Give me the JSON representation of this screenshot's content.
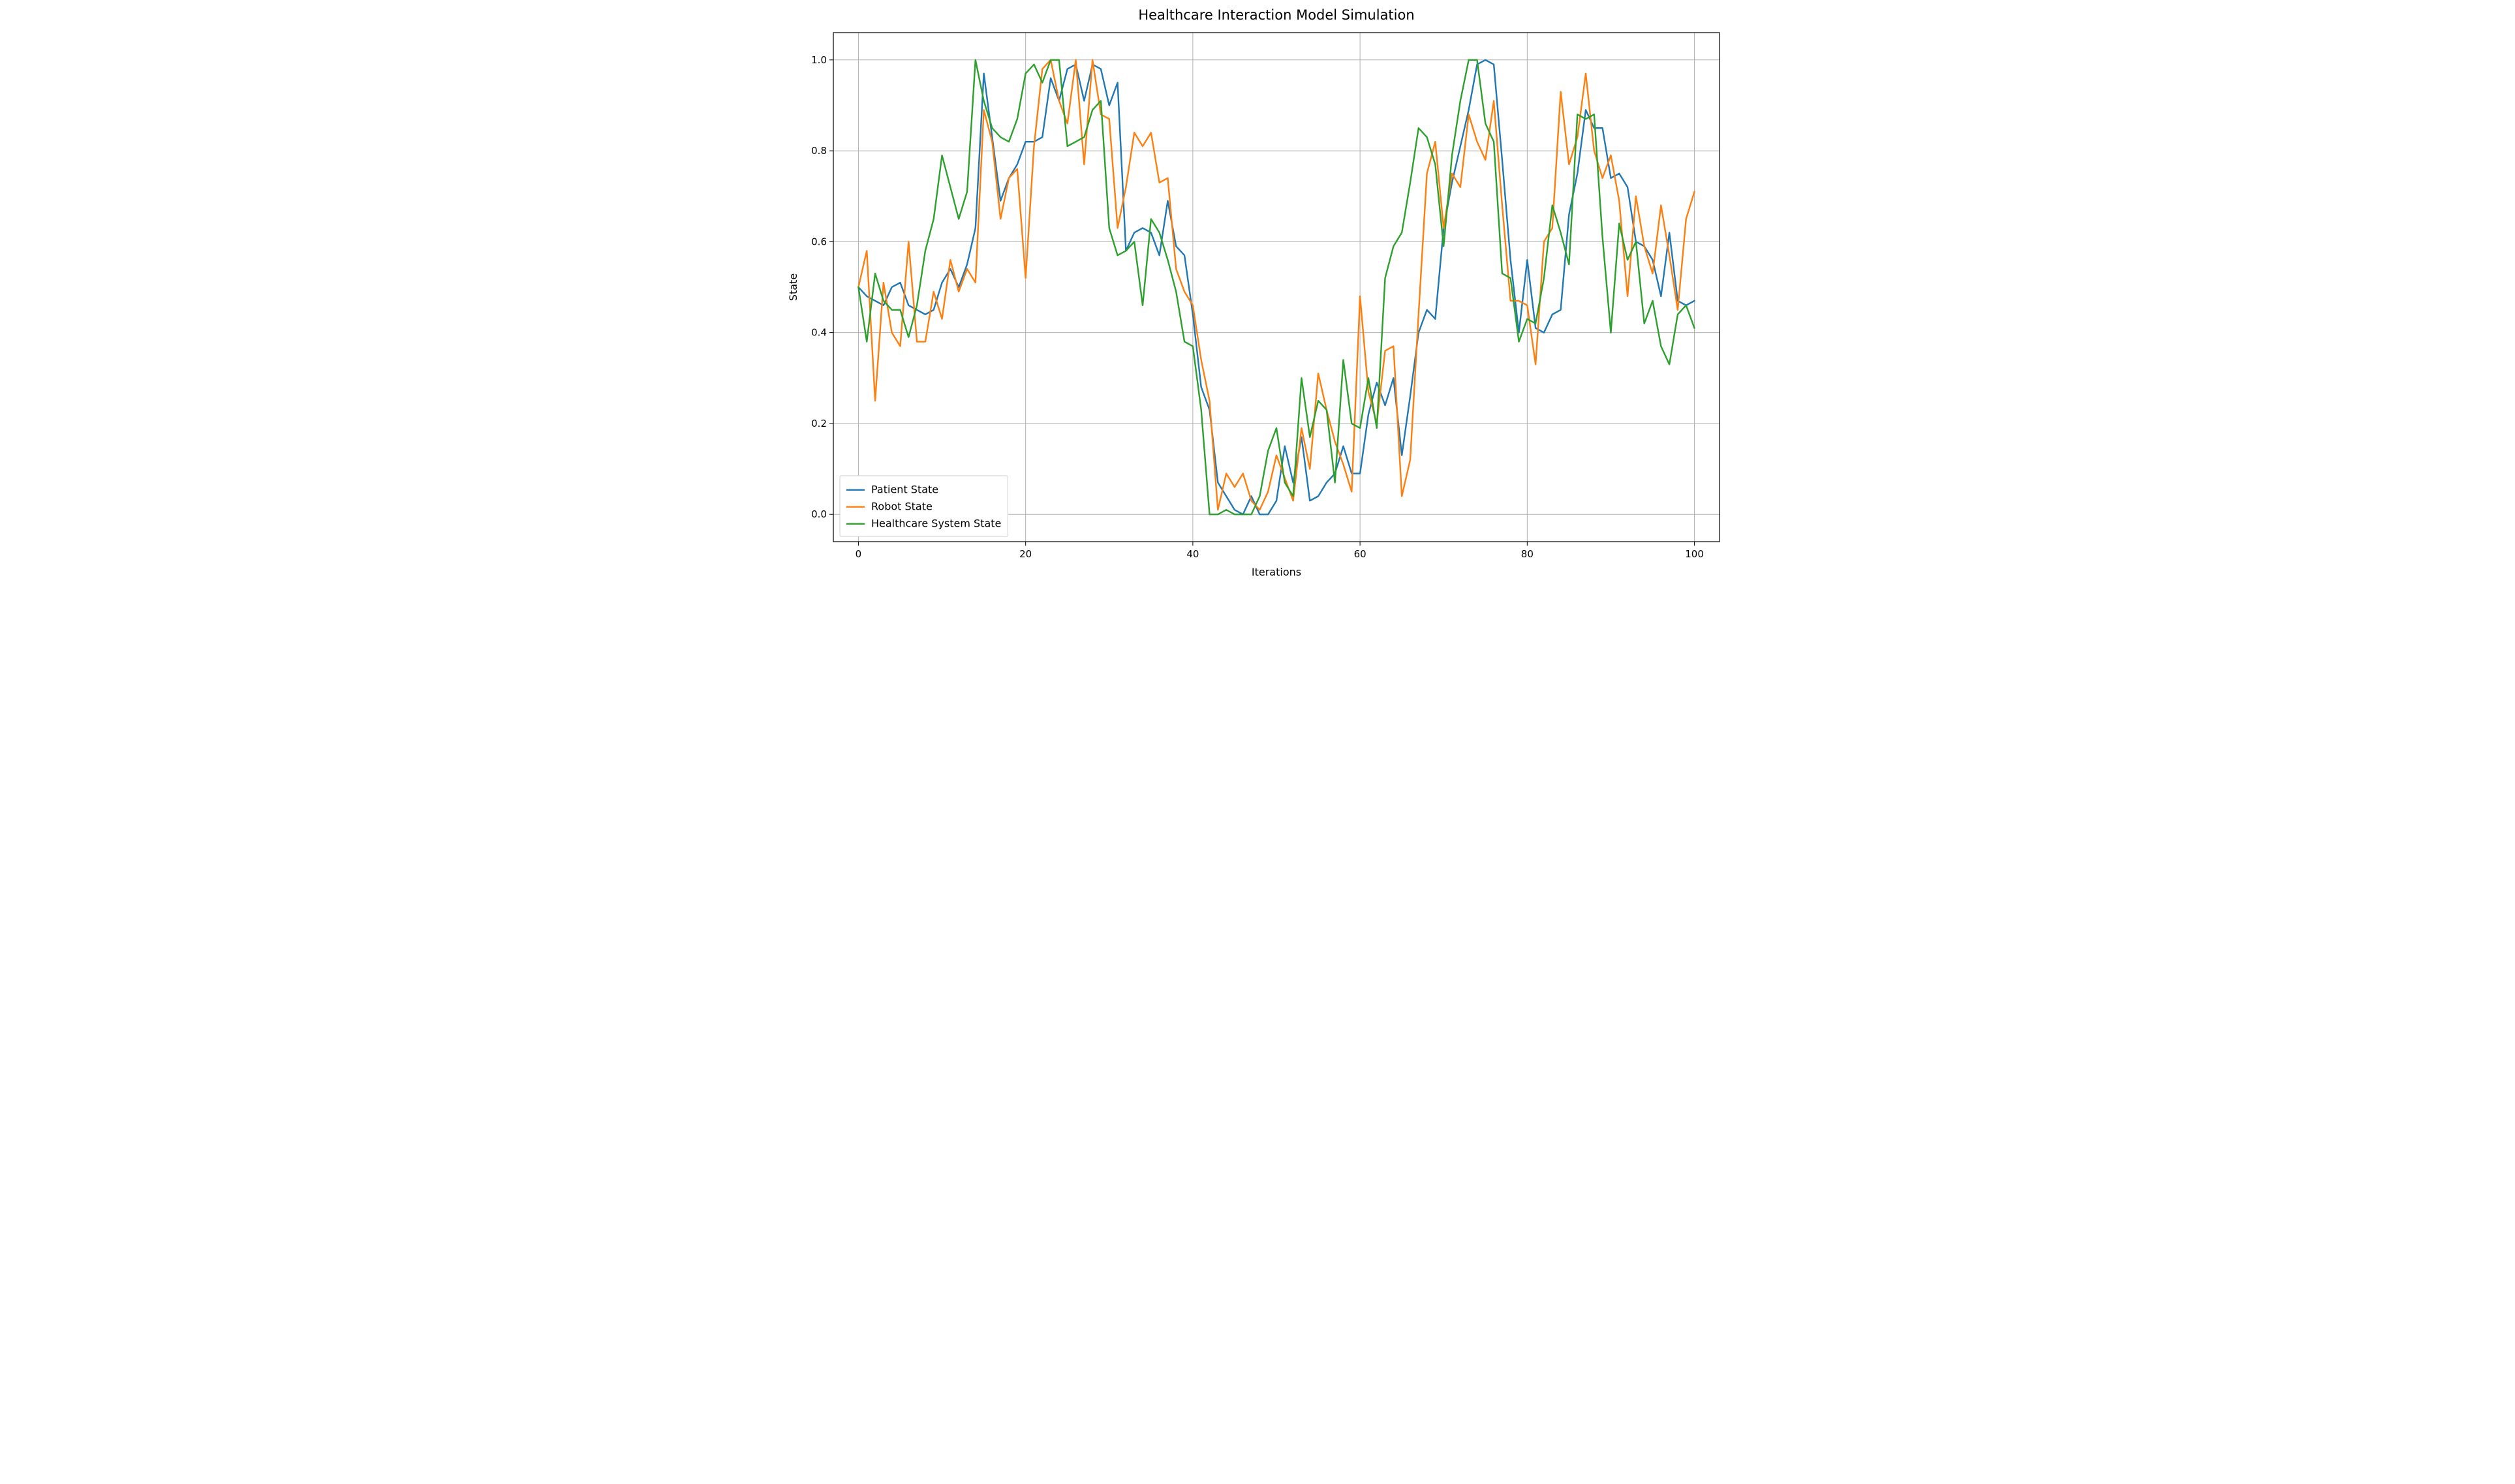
{
  "chart": {
    "type": "line",
    "title": "Healthcare Interaction Model Simulation",
    "title_fontsize": 21,
    "xlabel": "Iterations",
    "ylabel": "State",
    "label_fontsize": 16,
    "tick_fontsize": 15,
    "background_color": "#ffffff",
    "axes_facecolor": "#ffffff",
    "grid_color": "#b0b0b0",
    "grid_linewidth": 1,
    "spine_color": "#000000",
    "line_width": 2.4,
    "xlim": [
      -3,
      103
    ],
    "ylim": [
      -0.06,
      1.06
    ],
    "xticks": [
      0,
      20,
      40,
      60,
      80,
      100
    ],
    "yticks": [
      0.0,
      0.2,
      0.4,
      0.6,
      0.8,
      1.0
    ],
    "legend": {
      "position": "lower left",
      "frame_color": "#cccccc",
      "frame_bg": "#ffffff",
      "fontsize": 16,
      "items": [
        {
          "label": "Patient State",
          "color": "#1f77b4"
        },
        {
          "label": "Robot State",
          "color": "#ff7f0e"
        },
        {
          "label": "Healthcare System State",
          "color": "#2ca02c"
        }
      ]
    },
    "series": [
      {
        "name": "Patient State",
        "color": "#1f77b4",
        "y": [
          0.5,
          0.48,
          0.47,
          0.46,
          0.5,
          0.51,
          0.46,
          0.45,
          0.44,
          0.45,
          0.51,
          0.54,
          0.5,
          0.55,
          0.63,
          0.97,
          0.83,
          0.69,
          0.74,
          0.77,
          0.82,
          0.82,
          0.83,
          0.96,
          0.91,
          0.98,
          0.99,
          0.91,
          0.99,
          0.98,
          0.9,
          0.95,
          0.58,
          0.62,
          0.63,
          0.62,
          0.57,
          0.69,
          0.59,
          0.57,
          0.44,
          0.28,
          0.23,
          0.07,
          0.04,
          0.01,
          0.0,
          0.04,
          0.0,
          0.0,
          0.03,
          0.15,
          0.07,
          0.17,
          0.03,
          0.04,
          0.07,
          0.09,
          0.15,
          0.09,
          0.09,
          0.22,
          0.29,
          0.24,
          0.3,
          0.13,
          0.26,
          0.4,
          0.45,
          0.43,
          0.63,
          0.73,
          0.81,
          0.89,
          0.99,
          1.0,
          0.99,
          0.78,
          0.56,
          0.4,
          0.56,
          0.41,
          0.4,
          0.44,
          0.45,
          0.66,
          0.75,
          0.89,
          0.85,
          0.85,
          0.74,
          0.75,
          0.72,
          0.6,
          0.59,
          0.56,
          0.48,
          0.62,
          0.47,
          0.46,
          0.47
        ]
      },
      {
        "name": "Robot State",
        "color": "#ff7f0e",
        "y": [
          0.5,
          0.58,
          0.25,
          0.51,
          0.4,
          0.37,
          0.6,
          0.38,
          0.38,
          0.49,
          0.43,
          0.56,
          0.49,
          0.54,
          0.51,
          0.89,
          0.82,
          0.65,
          0.74,
          0.76,
          0.52,
          0.81,
          0.98,
          1.0,
          0.91,
          0.86,
          1.0,
          0.77,
          1.0,
          0.88,
          0.87,
          0.63,
          0.72,
          0.84,
          0.81,
          0.84,
          0.73,
          0.74,
          0.54,
          0.49,
          0.46,
          0.34,
          0.25,
          0.01,
          0.09,
          0.06,
          0.09,
          0.03,
          0.01,
          0.05,
          0.13,
          0.08,
          0.03,
          0.19,
          0.1,
          0.31,
          0.23,
          0.16,
          0.11,
          0.05,
          0.48,
          0.27,
          0.2,
          0.36,
          0.37,
          0.04,
          0.12,
          0.44,
          0.75,
          0.82,
          0.63,
          0.75,
          0.72,
          0.88,
          0.82,
          0.78,
          0.91,
          0.68,
          0.47,
          0.47,
          0.46,
          0.33,
          0.6,
          0.63,
          0.93,
          0.77,
          0.83,
          0.97,
          0.8,
          0.74,
          0.79,
          0.69,
          0.48,
          0.7,
          0.59,
          0.53,
          0.68,
          0.57,
          0.45,
          0.65,
          0.71
        ]
      },
      {
        "name": "Healthcare System State",
        "color": "#2ca02c",
        "y": [
          0.5,
          0.38,
          0.53,
          0.47,
          0.45,
          0.45,
          0.39,
          0.46,
          0.58,
          0.65,
          0.79,
          0.72,
          0.65,
          0.71,
          1.0,
          0.91,
          0.85,
          0.83,
          0.82,
          0.87,
          0.97,
          0.99,
          0.95,
          1.0,
          1.0,
          0.81,
          0.82,
          0.83,
          0.89,
          0.91,
          0.63,
          0.57,
          0.58,
          0.6,
          0.46,
          0.65,
          0.62,
          0.56,
          0.49,
          0.38,
          0.37,
          0.23,
          0.0,
          0.0,
          0.01,
          0.0,
          0.0,
          0.0,
          0.04,
          0.14,
          0.19,
          0.07,
          0.04,
          0.3,
          0.17,
          0.25,
          0.23,
          0.07,
          0.34,
          0.2,
          0.19,
          0.3,
          0.19,
          0.52,
          0.59,
          0.62,
          0.73,
          0.85,
          0.83,
          0.77,
          0.59,
          0.79,
          0.91,
          1.0,
          1.0,
          0.86,
          0.82,
          0.53,
          0.52,
          0.38,
          0.43,
          0.42,
          0.52,
          0.68,
          0.62,
          0.55,
          0.88,
          0.87,
          0.88,
          0.61,
          0.4,
          0.64,
          0.56,
          0.6,
          0.42,
          0.47,
          0.37,
          0.33,
          0.44,
          0.46,
          0.41
        ]
      }
    ]
  }
}
